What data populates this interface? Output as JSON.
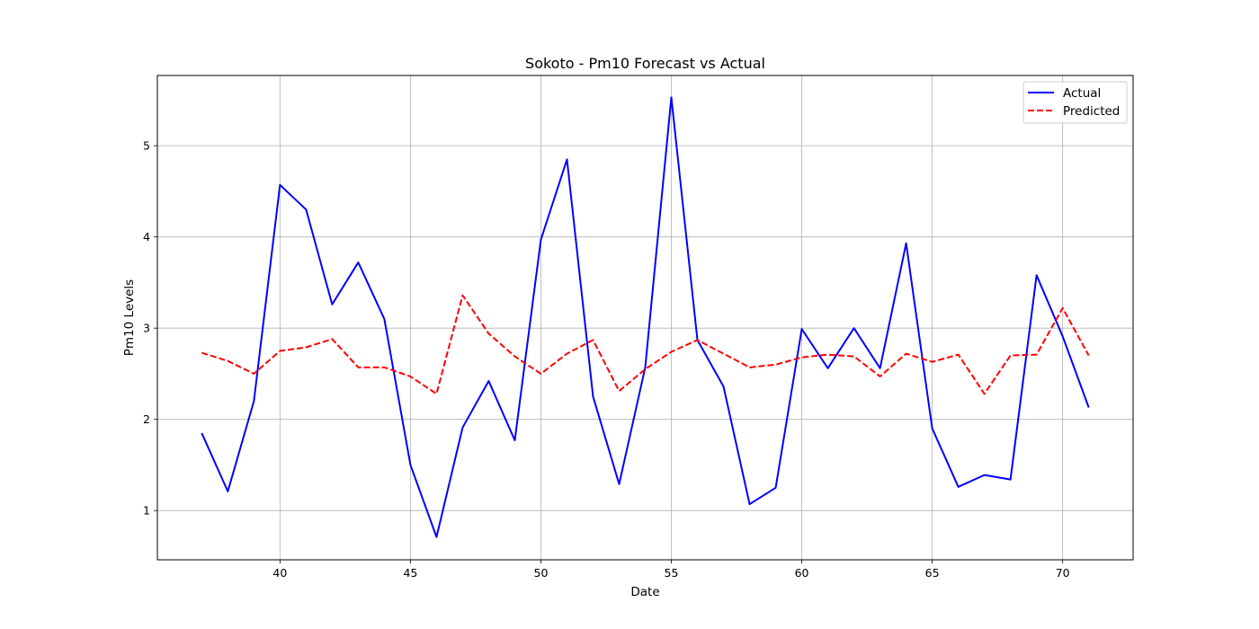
{
  "chart_data": {
    "type": "line",
    "title": "Sokoto - Pm10 Forecast vs Actual",
    "xlabel": "Date",
    "ylabel": "Pm10 Levels",
    "xlim": [
      35.3,
      72.7
    ],
    "ylim": [
      0.46,
      5.77
    ],
    "xticks": [
      40,
      45,
      50,
      55,
      60,
      65,
      70
    ],
    "yticks": [
      1,
      2,
      3,
      4,
      5
    ],
    "grid": true,
    "legend_position": "top-right",
    "x": [
      37,
      38,
      39,
      40,
      41,
      42,
      43,
      44,
      45,
      46,
      47,
      48,
      49,
      50,
      51,
      52,
      53,
      54,
      55,
      56,
      57,
      58,
      59,
      60,
      61,
      62,
      63,
      64,
      65,
      66,
      67,
      68,
      69,
      70,
      71
    ],
    "series": [
      {
        "name": "Actual",
        "color": "#0000ff",
        "style": "solid",
        "values": [
          1.85,
          1.21,
          2.2,
          4.57,
          4.3,
          3.26,
          3.72,
          3.1,
          1.5,
          0.71,
          1.91,
          2.42,
          1.77,
          3.97,
          4.85,
          2.25,
          1.29,
          2.57,
          5.53,
          2.87,
          2.36,
          1.07,
          1.25,
          2.99,
          2.56,
          3.0,
          2.56,
          3.93,
          1.9,
          1.26,
          1.39,
          1.34,
          3.58,
          2.91,
          2.13
        ]
      },
      {
        "name": "Predicted",
        "color": "#ff0000",
        "style": "dashed",
        "values": [
          2.73,
          2.64,
          2.5,
          2.75,
          2.79,
          2.88,
          2.57,
          2.57,
          2.47,
          2.28,
          3.36,
          2.94,
          2.69,
          2.5,
          2.72,
          2.87,
          2.31,
          2.55,
          2.74,
          2.87,
          2.72,
          2.57,
          2.6,
          2.68,
          2.71,
          2.69,
          2.47,
          2.72,
          2.63,
          2.71,
          2.28,
          2.7,
          2.71,
          3.22,
          2.7
        ]
      }
    ]
  }
}
